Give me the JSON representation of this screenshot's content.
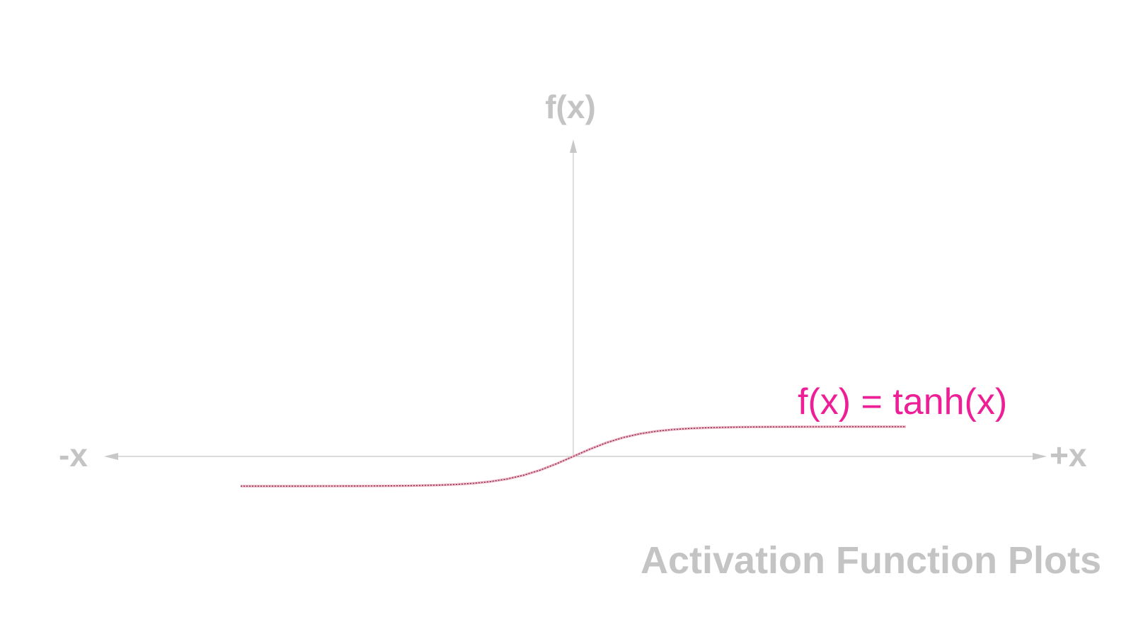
{
  "chart_data": {
    "type": "line",
    "title": "Activation Function Plots",
    "xlabel_negative": "-x",
    "xlabel_positive": "+x",
    "ylabel": "f(x)",
    "xlim": [
      -5,
      5
    ],
    "ylim": [
      -1,
      1
    ],
    "grid": false,
    "series": [
      {
        "name": "f(x) = tanh(x)",
        "color": "#ee1e96",
        "x": [
          -5,
          -4.5,
          -4,
          -3.5,
          -3,
          -2.5,
          -2,
          -1.75,
          -1.5,
          -1.25,
          -1,
          -0.75,
          -0.5,
          -0.25,
          0,
          0.25,
          0.5,
          0.75,
          1,
          1.25,
          1.5,
          1.75,
          2,
          2.5,
          3,
          3.5,
          4,
          4.5,
          5
        ],
        "y": [
          -0.9999,
          -0.9998,
          -0.9993,
          -0.9982,
          -0.9951,
          -0.9866,
          -0.964,
          -0.9414,
          -0.9051,
          -0.8483,
          -0.7616,
          -0.6351,
          -0.4621,
          -0.2449,
          0,
          0.2449,
          0.4621,
          0.6351,
          0.7616,
          0.8483,
          0.9051,
          0.9414,
          0.964,
          0.9866,
          0.9951,
          0.9982,
          0.9993,
          0.9998,
          0.9999
        ]
      }
    ]
  }
}
